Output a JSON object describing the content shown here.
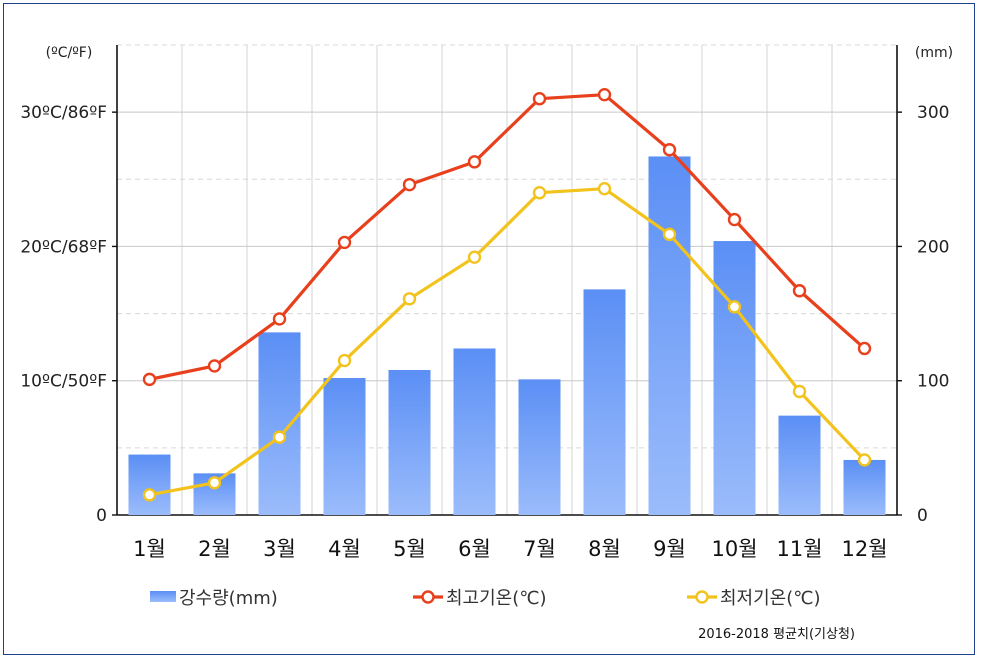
{
  "chart_data": {
    "type": "bar+line",
    "categories": [
      "1월",
      "2월",
      "3월",
      "4월",
      "5월",
      "6월",
      "7월",
      "8월",
      "9월",
      "10월",
      "11월",
      "12월"
    ],
    "left_axis": {
      "unit_label": "(ºC/ºF)",
      "range": [
        0,
        35
      ],
      "ticks": [
        {
          "value": 0,
          "label": "0"
        },
        {
          "value": 10,
          "label": "10ºC/50ºF"
        },
        {
          "value": 20,
          "label": "20ºC/68ºF"
        },
        {
          "value": 30,
          "label": "30ºC/86ºF"
        }
      ]
    },
    "right_axis": {
      "unit_label": "(mm)",
      "range": [
        0,
        350
      ],
      "ticks": [
        {
          "value": 0,
          "label": "0"
        },
        {
          "value": 100,
          "label": "100"
        },
        {
          "value": 200,
          "label": "200"
        },
        {
          "value": 300,
          "label": "300"
        }
      ]
    },
    "series": [
      {
        "name": "강수량(mm)",
        "kind": "bar",
        "axis": "right",
        "color": "#6699ff",
        "values": [
          45,
          31,
          136,
          102,
          108,
          124,
          101,
          168,
          267,
          204,
          74,
          41
        ]
      },
      {
        "name": "최고기온(℃)",
        "kind": "line",
        "axis": "left",
        "color": "#e8401c",
        "values": [
          10.1,
          11.1,
          14.6,
          20.3,
          24.6,
          26.3,
          31.0,
          31.3,
          27.2,
          22.0,
          16.7,
          12.4
        ]
      },
      {
        "name": "최저기온(℃)",
        "kind": "line",
        "axis": "left",
        "color": "#f2c31c",
        "values": [
          1.5,
          2.4,
          5.8,
          11.5,
          16.1,
          19.2,
          24.0,
          24.3,
          20.9,
          15.5,
          9.2,
          4.1
        ]
      }
    ],
    "grid": true,
    "legend_position": "bottom",
    "source": "2016-2018 평균치(기상청)"
  }
}
